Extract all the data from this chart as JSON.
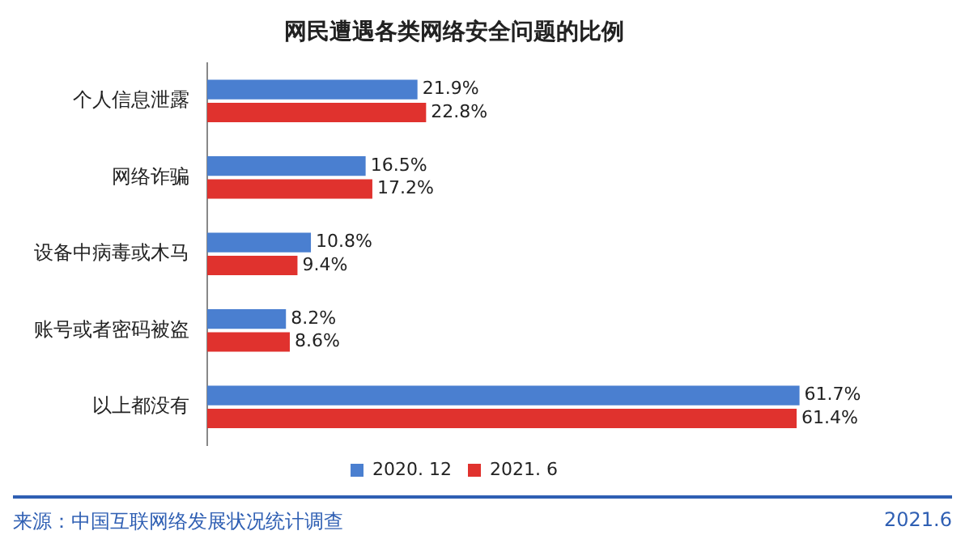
{
  "chart_data": {
    "type": "bar",
    "orientation": "horizontal",
    "title": "网民遭遇各类网络安全问题的比例",
    "categories": [
      "个人信息泄露",
      "网络诈骗",
      "设备中病毒或木马",
      "账号或者密码被盗",
      "以上都没有"
    ],
    "series": [
      {
        "name": "2020. 12",
        "color": "#4a7fd0",
        "values": [
          21.9,
          16.5,
          10.8,
          8.2,
          61.7
        ],
        "value_labels": [
          "21.9%",
          "16.5%",
          "10.8%",
          "8.2%",
          "61.7%"
        ]
      },
      {
        "name": "2021. 6",
        "color": "#e0322e",
        "values": [
          22.8,
          17.2,
          9.4,
          8.6,
          61.4
        ],
        "value_labels": [
          "22.8%",
          "17.2%",
          "9.4%",
          "8.6%",
          "61.4%"
        ]
      }
    ],
    "legend": "bottom",
    "grid": false,
    "tick_labels": "y",
    "annotations": [
      "来源：中国互联网络发展状况统计调查",
      "2021.6"
    ]
  }
}
